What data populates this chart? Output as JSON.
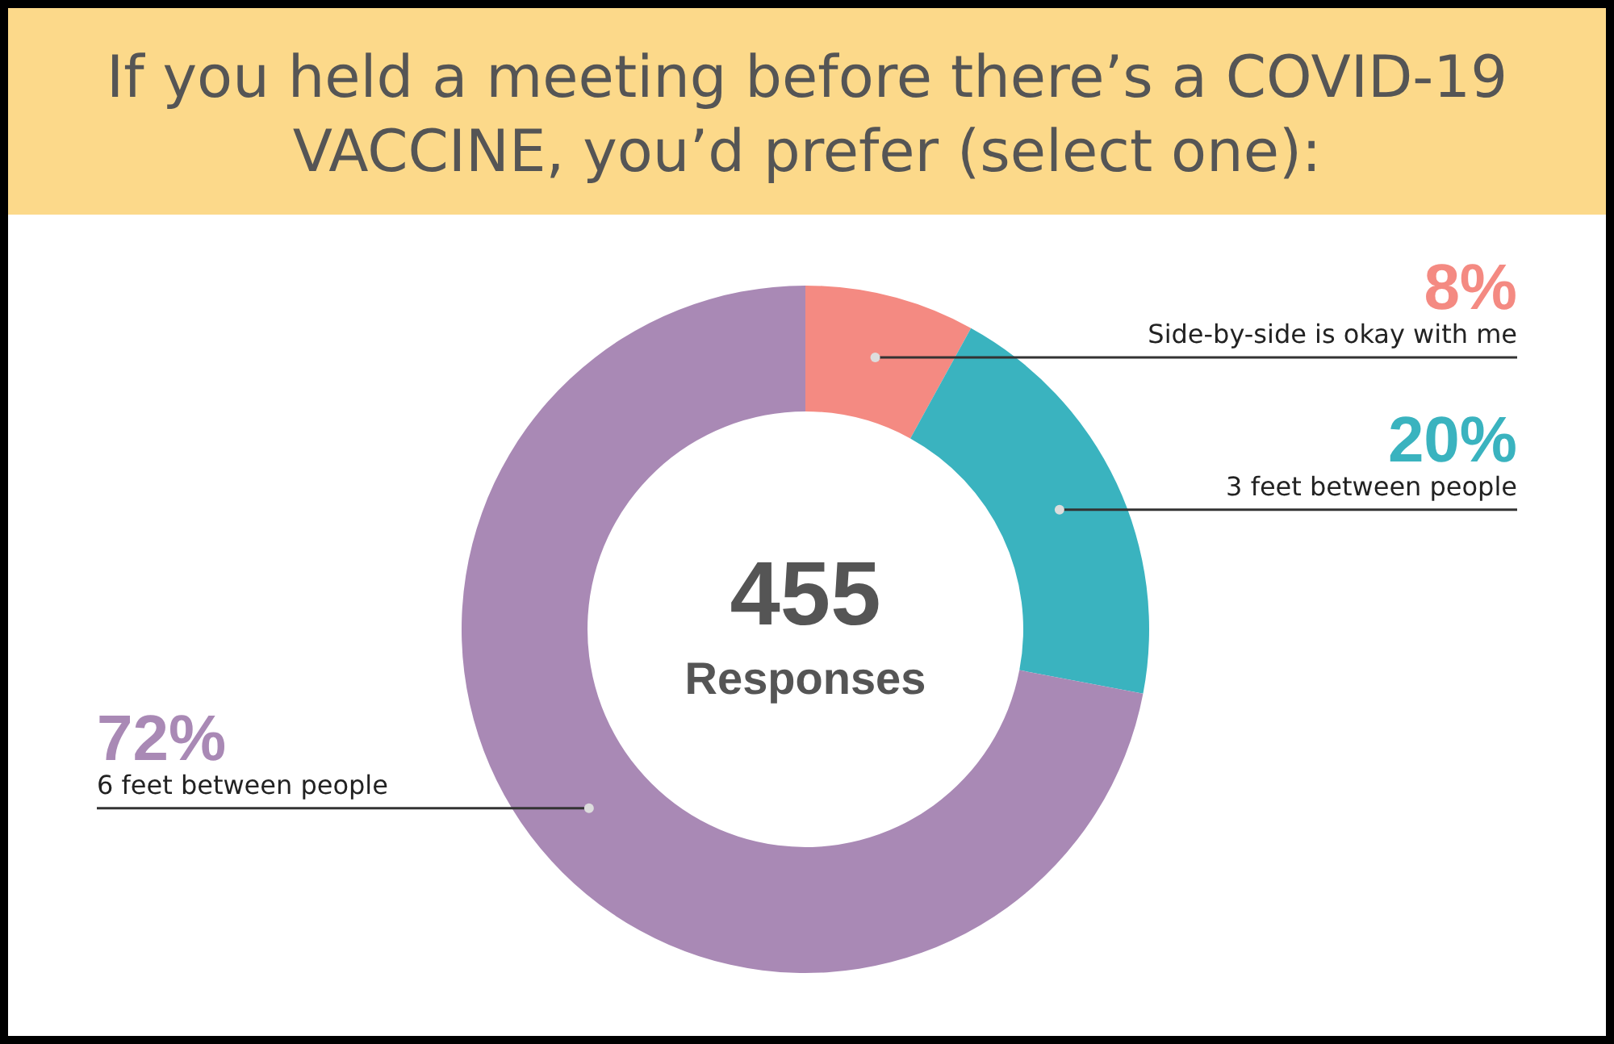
{
  "chart_data": {
    "type": "donut",
    "title": "If you held a meeting before there’s a COVID-19 VACCINE, you’d prefer (select one):",
    "categories": [
      "Side-by-side is okay with me",
      "3 feet between people",
      "6 feet between people"
    ],
    "values": [
      8,
      20,
      72
    ],
    "colors": [
      "#f48a82",
      "#3ab3bf",
      "#a989b5"
    ],
    "value_labels": [
      "8%",
      "20%",
      "72%"
    ],
    "annotations": [
      "455",
      "Responses"
    ]
  }
}
